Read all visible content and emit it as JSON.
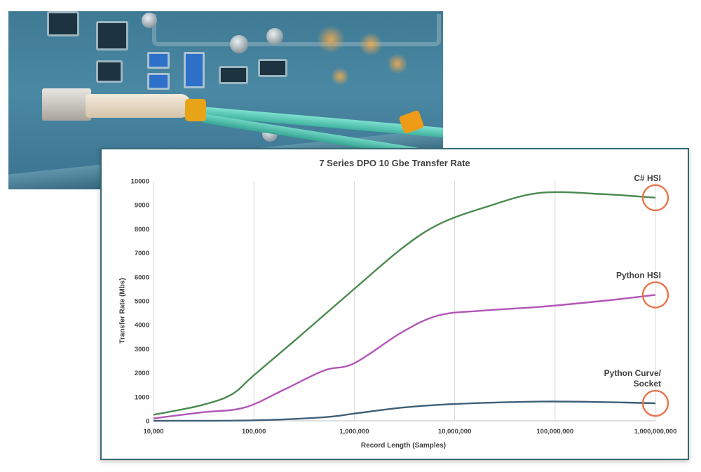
{
  "chart_data": {
    "type": "line",
    "title": "7 Series DPO  10 Gbe Transfer Rate",
    "xlabel": "Record Length  (Samples)",
    "ylabel": "Transfer Rate  (Mbs)",
    "x_scale": "log",
    "xlim": [
      10000,
      1000000000
    ],
    "ylim": [
      0,
      10000
    ],
    "x_ticks": [
      "10,000",
      "100,000",
      "1,000,000",
      "10,000,000",
      "100,000,000",
      "1,000,000,000"
    ],
    "y_ticks": [
      "0",
      "1000",
      "2000",
      "3000",
      "4000",
      "5000",
      "6000",
      "7000",
      "8000",
      "9000",
      "10000"
    ],
    "grid": "vertical",
    "legend": "none",
    "series": [
      {
        "name": "C# HSI",
        "color": "#4a8a4f",
        "x": [
          10000,
          30000,
          60000,
          100000,
          300000,
          1000000,
          3000000,
          7000000,
          20000000,
          70000000,
          300000000,
          1000000000
        ],
        "y": [
          250,
          650,
          1100,
          1900,
          3600,
          5500,
          7200,
          8200,
          8900,
          9500,
          9450,
          9300
        ]
      },
      {
        "name": "Python HSI",
        "color": "#b255b8",
        "x": [
          10000,
          30000,
          80000,
          200000,
          500000,
          1000000,
          3000000,
          7000000,
          20000000,
          70000000,
          300000000,
          1000000000
        ],
        "y": [
          100,
          350,
          550,
          1300,
          2100,
          2400,
          3700,
          4400,
          4600,
          4750,
          5000,
          5250
        ]
      },
      {
        "name": "Python Curve/ Socket",
        "color": "#3e5f78",
        "x": [
          10000,
          100000,
          500000,
          1000000,
          3000000,
          10000000,
          70000000,
          300000000,
          1000000000
        ],
        "y": [
          0,
          20,
          150,
          300,
          550,
          700,
          800,
          780,
          730
        ]
      }
    ],
    "annotations": [
      {
        "series": "C# HSI",
        "lines": [
          "C# HSI"
        ]
      },
      {
        "series": "Python HSI",
        "lines": [
          "Python HSI"
        ]
      },
      {
        "series": "Python Curve/ Socket",
        "lines": [
          "Python Curve/",
          "Socket"
        ]
      }
    ],
    "highlight_color": "#e8744a"
  }
}
